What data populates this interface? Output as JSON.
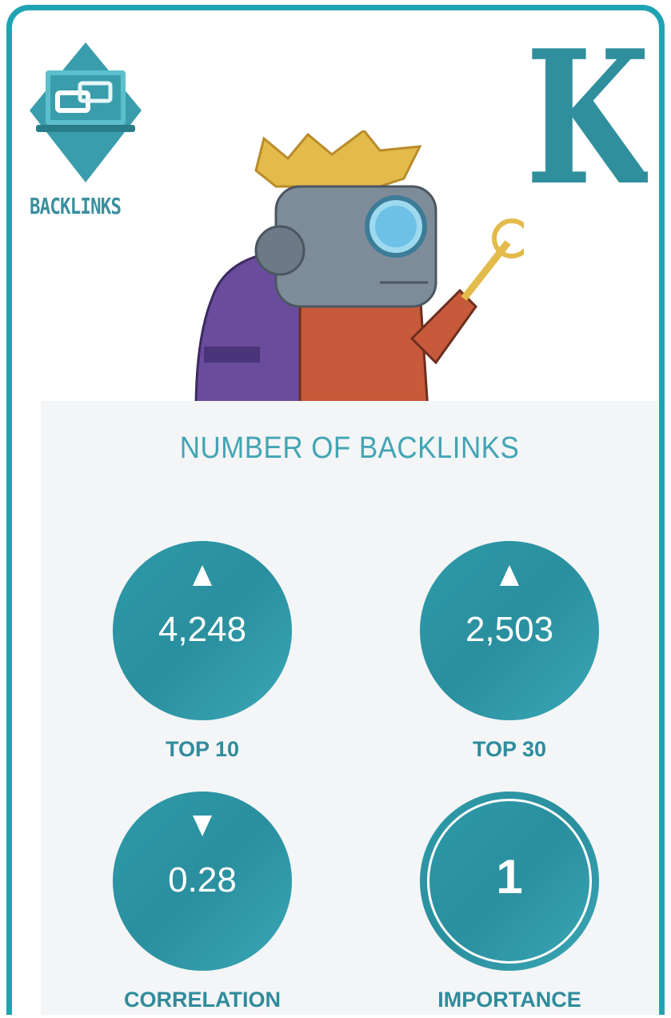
{
  "badge": {
    "label": "BACKLINKS",
    "icon": "laptop-link-icon"
  },
  "card": {
    "letter": "K",
    "accent_color": "#1fa3b3",
    "illustration": "robot-king"
  },
  "panel": {
    "title": "NUMBER OF BACKLINKS",
    "stats": [
      {
        "label": "TOP 10",
        "value": "4,248",
        "trend": "up"
      },
      {
        "label": "TOP 30",
        "value": "2,503",
        "trend": "up"
      },
      {
        "label": "CORRELATION",
        "value": "0.28",
        "trend": "down"
      },
      {
        "label": "IMPORTANCE",
        "value": "1",
        "trend": "none"
      }
    ]
  },
  "colors": {
    "teal": "#2e9aa9",
    "label": "#2f8c9b",
    "panel_bg": "#f3f5f7"
  }
}
